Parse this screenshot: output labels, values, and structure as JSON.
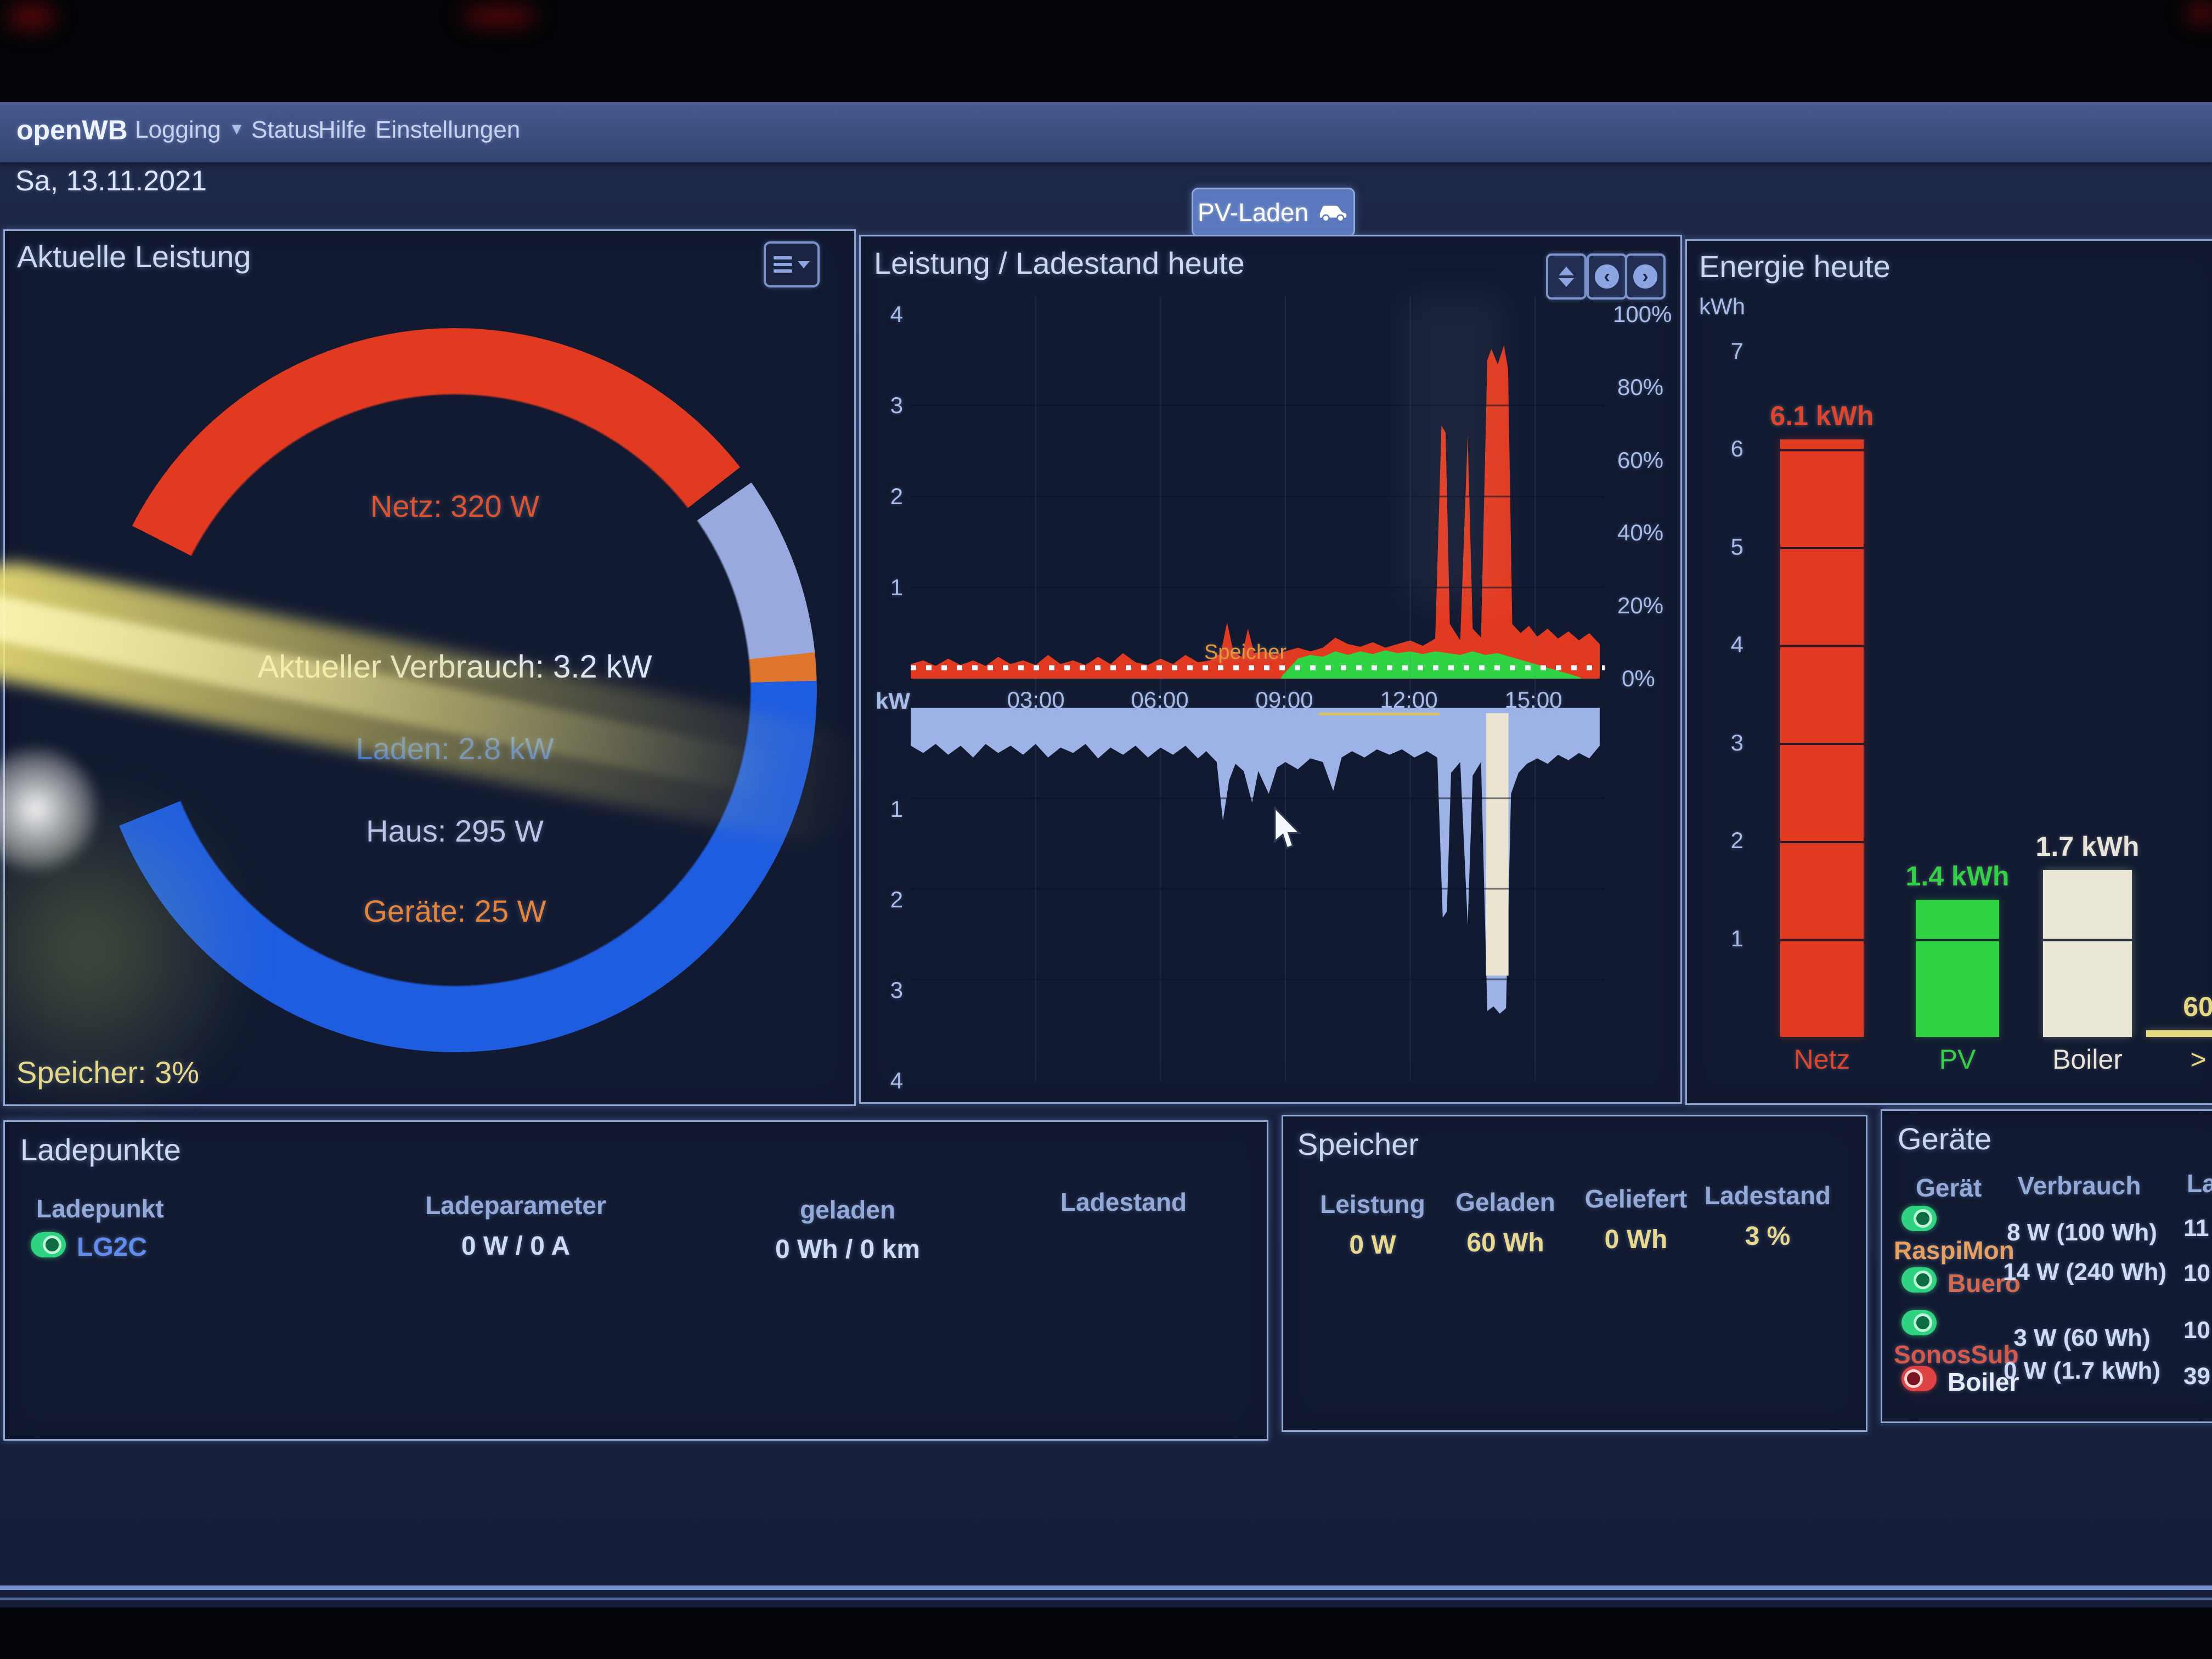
{
  "navbar": {
    "brand": "openWB",
    "items": [
      {
        "label": "Logging",
        "dropdown": true
      },
      {
        "label": "Status"
      },
      {
        "label": "Hilfe"
      },
      {
        "label": "Einstellungen"
      }
    ]
  },
  "date": "Sa, 13.11.2021",
  "pv_button": {
    "label": "PV-Laden"
  },
  "power_panel": {
    "title": "Aktuelle Leistung",
    "lines": {
      "netz": "Netz: 320 W",
      "verbrauch": "Aktueller Verbrauch: 3.2 kW",
      "laden": "Laden: 2.8 kW",
      "haus": "Haus: 295 W",
      "geraete": "Geräte: 25 W"
    },
    "speicher": "Speicher: 3%",
    "colors": {
      "netz": "#e0532f",
      "verbrauch": "#dde6f8",
      "laden": "#2f6bdf",
      "haus": "#b9c4e8",
      "geraete": "#e8833a",
      "speicher": "#e8d98a"
    },
    "chart_data": {
      "type": "donut",
      "segments": [
        {
          "name": "Netz",
          "color": "#e23a20",
          "from": 297,
          "to": 412
        },
        {
          "name": "Haus",
          "color": "#97a9de",
          "from": 55,
          "to": 84
        },
        {
          "name": "Geräte",
          "color": "#e0762e",
          "from": 84,
          "to": 88.5
        },
        {
          "name": "Laden",
          "color": "#1e5de0",
          "from": 88.5,
          "to": 248
        }
      ]
    }
  },
  "power_chart_panel": {
    "title": "Leistung / Ladestand heute",
    "y_left_unit": "kW",
    "y_left_upper": [
      "4",
      "3",
      "2",
      "1"
    ],
    "y_left_lower": [
      "1",
      "2",
      "3",
      "4"
    ],
    "y_right": [
      "100%",
      "80%",
      "60%",
      "40%",
      "20%",
      "0%"
    ],
    "x_ticks": [
      "03:00",
      "06:00",
      "09:00",
      "12:00",
      "15:00"
    ],
    "soc_label": "Speicher",
    "chart_data": {
      "type": "area",
      "x_unit": "hour-of-day",
      "x_range": [
        0,
        16.67
      ],
      "y_unit_left": "kW",
      "y_range_upper": [
        0,
        4.1
      ],
      "y_range_lower": [
        0,
        -4.2
      ],
      "y_unit_right": "%",
      "soc_percent": 3,
      "series": [
        {
          "name": "Netz-Bezug",
          "color": "#e23a20",
          "orient": "up",
          "points": [
            [
              0,
              0.16
            ],
            [
              0.3,
              0.2
            ],
            [
              0.6,
              0.14
            ],
            [
              0.9,
              0.22
            ],
            [
              1.2,
              0.15
            ],
            [
              1.5,
              0.2
            ],
            [
              1.8,
              0.14
            ],
            [
              2.1,
              0.24
            ],
            [
              2.4,
              0.16
            ],
            [
              2.7,
              0.2
            ],
            [
              3.0,
              0.15
            ],
            [
              3.3,
              0.26
            ],
            [
              3.6,
              0.16
            ],
            [
              3.9,
              0.2
            ],
            [
              4.2,
              0.15
            ],
            [
              4.5,
              0.24
            ],
            [
              4.8,
              0.16
            ],
            [
              5.1,
              0.28
            ],
            [
              5.4,
              0.18
            ],
            [
              5.7,
              0.15
            ],
            [
              6.0,
              0.22
            ],
            [
              6.3,
              0.16
            ],
            [
              6.6,
              0.26
            ],
            [
              6.9,
              0.18
            ],
            [
              7.2,
              0.2
            ],
            [
              7.45,
              0.28
            ],
            [
              7.6,
              0.62
            ],
            [
              7.75,
              0.3
            ],
            [
              7.95,
              0.24
            ],
            [
              8.1,
              0.55
            ],
            [
              8.25,
              0.28
            ],
            [
              8.5,
              0.3
            ],
            [
              8.75,
              0.26
            ],
            [
              9.0,
              0.3
            ],
            [
              9.3,
              0.34
            ],
            [
              9.6,
              0.3
            ],
            [
              9.9,
              0.34
            ],
            [
              10.2,
              0.45
            ],
            [
              10.5,
              0.38
            ],
            [
              10.8,
              0.35
            ],
            [
              11.1,
              0.4
            ],
            [
              11.4,
              0.34
            ],
            [
              11.7,
              0.38
            ],
            [
              12.0,
              0.42
            ],
            [
              12.3,
              0.36
            ],
            [
              12.6,
              0.44
            ],
            [
              12.75,
              2.78
            ],
            [
              12.85,
              2.7
            ],
            [
              12.95,
              0.6
            ],
            [
              13.2,
              0.42
            ],
            [
              13.38,
              2.68
            ],
            [
              13.5,
              0.55
            ],
            [
              13.7,
              0.45
            ],
            [
              13.85,
              3.5
            ],
            [
              13.95,
              3.62
            ],
            [
              14.1,
              3.45
            ],
            [
              14.25,
              3.66
            ],
            [
              14.35,
              3.4
            ],
            [
              14.45,
              0.6
            ],
            [
              14.65,
              0.5
            ],
            [
              14.85,
              0.58
            ],
            [
              15.05,
              0.46
            ],
            [
              15.3,
              0.55
            ],
            [
              15.55,
              0.44
            ],
            [
              15.8,
              0.52
            ],
            [
              16.05,
              0.42
            ],
            [
              16.3,
              0.5
            ],
            [
              16.55,
              0.38
            ]
          ]
        },
        {
          "name": "PV",
          "color": "#2fd344",
          "orient": "up",
          "points": [
            [
              8.9,
              0.02
            ],
            [
              9.1,
              0.12
            ],
            [
              9.3,
              0.22
            ],
            [
              9.6,
              0.26
            ],
            [
              9.9,
              0.24
            ],
            [
              10.2,
              0.3
            ],
            [
              10.5,
              0.26
            ],
            [
              10.8,
              0.3
            ],
            [
              11.1,
              0.27
            ],
            [
              11.4,
              0.31
            ],
            [
              11.7,
              0.28
            ],
            [
              12.0,
              0.3
            ],
            [
              12.3,
              0.27
            ],
            [
              12.6,
              0.3
            ],
            [
              12.9,
              0.28
            ],
            [
              13.2,
              0.26
            ],
            [
              13.5,
              0.3
            ],
            [
              13.8,
              0.26
            ],
            [
              14.1,
              0.28
            ],
            [
              14.4,
              0.24
            ],
            [
              14.7,
              0.2
            ],
            [
              15.0,
              0.16
            ],
            [
              15.3,
              0.12
            ],
            [
              15.6,
              0.08
            ],
            [
              15.9,
              0.04
            ],
            [
              16.1,
              0.01
            ]
          ]
        },
        {
          "name": "Hausverbrauch",
          "color": "#9db2e6",
          "orient": "down",
          "points": [
            [
              0,
              0.42
            ],
            [
              0.3,
              0.5
            ],
            [
              0.6,
              0.4
            ],
            [
              0.9,
              0.52
            ],
            [
              1.2,
              0.42
            ],
            [
              1.5,
              0.55
            ],
            [
              1.8,
              0.4
            ],
            [
              2.1,
              0.5
            ],
            [
              2.4,
              0.42
            ],
            [
              2.7,
              0.52
            ],
            [
              3.0,
              0.4
            ],
            [
              3.3,
              0.55
            ],
            [
              3.6,
              0.44
            ],
            [
              3.9,
              0.5
            ],
            [
              4.2,
              0.4
            ],
            [
              4.5,
              0.56
            ],
            [
              4.8,
              0.44
            ],
            [
              5.1,
              0.52
            ],
            [
              5.4,
              0.42
            ],
            [
              5.7,
              0.55
            ],
            [
              6.0,
              0.44
            ],
            [
              6.3,
              0.52
            ],
            [
              6.6,
              0.42
            ],
            [
              6.9,
              0.56
            ],
            [
              7.1,
              0.48
            ],
            [
              7.35,
              0.6
            ],
            [
              7.5,
              1.25
            ],
            [
              7.65,
              0.8
            ],
            [
              7.8,
              0.62
            ],
            [
              8.0,
              0.7
            ],
            [
              8.2,
              1.05
            ],
            [
              8.35,
              0.7
            ],
            [
              8.6,
              0.95
            ],
            [
              8.8,
              0.66
            ],
            [
              9.0,
              0.6
            ],
            [
              9.3,
              0.68
            ],
            [
              9.6,
              0.56
            ],
            [
              9.9,
              0.6
            ],
            [
              10.15,
              0.92
            ],
            [
              10.35,
              0.55
            ],
            [
              10.6,
              0.48
            ],
            [
              10.9,
              0.55
            ],
            [
              11.2,
              0.46
            ],
            [
              11.5,
              0.52
            ],
            [
              11.8,
              0.46
            ],
            [
              12.1,
              0.55
            ],
            [
              12.4,
              0.48
            ],
            [
              12.65,
              0.55
            ],
            [
              12.78,
              2.32
            ],
            [
              12.88,
              2.25
            ],
            [
              12.98,
              0.72
            ],
            [
              13.2,
              0.6
            ],
            [
              13.38,
              2.4
            ],
            [
              13.5,
              0.75
            ],
            [
              13.7,
              0.6
            ],
            [
              13.85,
              3.35
            ],
            [
              14.0,
              3.3
            ],
            [
              14.15,
              3.38
            ],
            [
              14.3,
              3.32
            ],
            [
              14.42,
              0.95
            ],
            [
              14.6,
              0.72
            ],
            [
              14.8,
              0.62
            ],
            [
              15.05,
              0.56
            ],
            [
              15.3,
              0.62
            ],
            [
              15.55,
              0.52
            ],
            [
              15.8,
              0.58
            ],
            [
              16.05,
              0.5
            ],
            [
              16.3,
              0.56
            ],
            [
              16.55,
              0.42
            ]
          ]
        },
        {
          "name": "Boiler",
          "color": "#eae4d0",
          "orient": "down",
          "window": [
            13.82,
            14.36
          ],
          "kw": 2.9
        },
        {
          "name": "Geräte",
          "color": "#d8c35a",
          "orient": "down",
          "window": [
            9.8,
            12.7
          ],
          "kw": 0.07
        }
      ]
    }
  },
  "energy_panel": {
    "title": "Energie heute",
    "unit": "kWh",
    "y_ticks": [
      "7",
      "6",
      "5",
      "4",
      "3",
      "2",
      "1"
    ],
    "chart_data": {
      "type": "bar",
      "ylim": [
        0,
        7
      ],
      "bars": [
        {
          "category": "Netz",
          "value_kwh": 6.1,
          "label": "6.1 kWh",
          "color": "#e23a20",
          "label_color": "#e0442c"
        },
        {
          "category": "PV",
          "value_kwh": 1.4,
          "label": "1.4 kWh",
          "color": "#2fd344",
          "label_color": "#2fd344"
        },
        {
          "category": "Boiler",
          "value_kwh": 1.7,
          "label": "1.7 kWh",
          "color": "#eae6d6",
          "label_color": "#e8e4da"
        },
        {
          "category": ">",
          "value_kwh": 0.06,
          "label": "60",
          "color": "#e5d87e",
          "label_color": "#e5d87e",
          "clipped": true
        }
      ]
    }
  },
  "ladepunkte_panel": {
    "title": "Ladepunkte",
    "headers": [
      "Ladepunkt",
      "Ladeparameter",
      "geladen",
      "Ladestand"
    ],
    "row": {
      "name": "LG2C",
      "toggle": "on",
      "ladeparameter": "0 W / 0 A",
      "geladen": "0 Wh / 0 km",
      "ladestand": ""
    }
  },
  "speicher_panel": {
    "title": "Speicher",
    "headers": [
      "Leistung",
      "Geladen",
      "Geliefert",
      "Ladestand"
    ],
    "values": [
      "0 W",
      "60 Wh",
      "0 Wh",
      "3 %"
    ]
  },
  "geraete_panel": {
    "title": "Geräte",
    "headers": [
      "Gerät",
      "Verbrauch",
      "La"
    ],
    "rows": [
      {
        "name": "RaspiMon",
        "name_color": "#e8a05c",
        "toggle": "on",
        "verbrauch": "8 W (100 Wh)",
        "right": "11"
      },
      {
        "name": "Buero",
        "name_color": "#d8694a",
        "toggle": "on",
        "verbrauch": "14 W (240 Wh)",
        "right": "10"
      },
      {
        "name": "SonosSub",
        "name_color": "#d85848",
        "toggle": "on",
        "verbrauch": "3 W (60 Wh)",
        "right": "10"
      },
      {
        "name": "Boiler",
        "name_color": "#e8ecf5",
        "toggle": "off",
        "verbrauch": "0 W (1.7 kWh)",
        "right": "39"
      }
    ]
  }
}
